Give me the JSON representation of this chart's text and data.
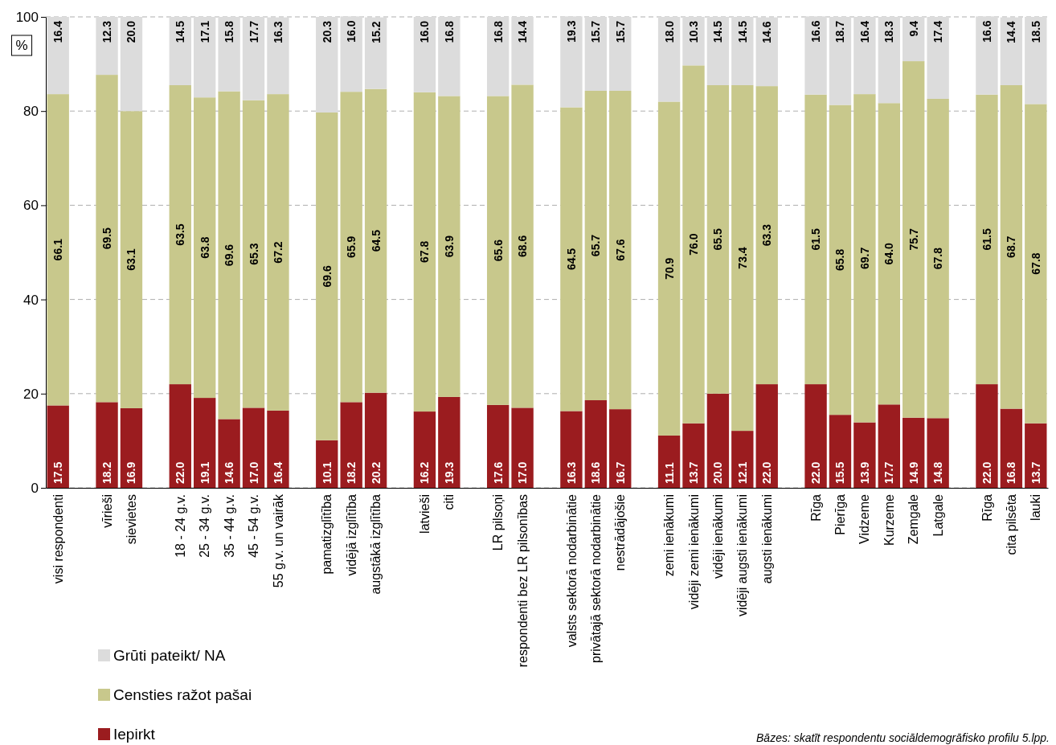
{
  "chart_data": {
    "type": "bar",
    "stacked": true,
    "ylabel": "%",
    "categories": [
      "visi respondenti",
      null,
      "vīrieši",
      "sievietes",
      null,
      "18 - 24 g.v.",
      "25 - 34 g.v.",
      "35 - 44 g.v.",
      "45 - 54 g.v.",
      "55 g.v. un vairāk",
      null,
      "pamatizglītība",
      "vidējā izglītība",
      "augstākā izglītība",
      null,
      "latvieši",
      "citi",
      null,
      "LR pilsoņi",
      "respondenti bez LR pilsonības",
      null,
      "valsts sektorā nodarbinātie",
      "privātajā sektorā nodarbinātie",
      "nestrādājošie",
      null,
      "zemi ienākumi",
      "vidēji zemi ienākumi",
      "vidēji ienākumi",
      "vidēji augsti ienākumi",
      "augsti ienākumi",
      null,
      "Rīga",
      "Pierīga",
      "Vidzeme",
      "Kurzeme",
      "Zemgale",
      "Latgale",
      null,
      "Rīga",
      "cita pilsēta",
      "lauki"
    ],
    "series": [
      {
        "name": "Iepirkt",
        "color": "#9b1c1f",
        "values": [
          17.5,
          null,
          18.2,
          16.9,
          null,
          22.0,
          19.1,
          14.6,
          17.0,
          16.4,
          null,
          10.1,
          18.2,
          20.2,
          null,
          16.2,
          19.3,
          null,
          17.6,
          17.0,
          null,
          16.3,
          18.6,
          16.7,
          null,
          11.1,
          13.7,
          20.0,
          12.1,
          22.0,
          null,
          22.0,
          15.5,
          13.9,
          17.7,
          14.9,
          14.8,
          null,
          22.0,
          16.8,
          13.7
        ],
        "value_labels": [
          "17.5",
          null,
          "18.2",
          "16.9",
          null,
          "22.0",
          "19.1",
          "14.6",
          "17.0",
          "16.4",
          null,
          "10.1",
          "18.2",
          "20.2",
          null,
          "16.2",
          "19.3",
          null,
          "17.6",
          "17.0",
          null,
          "16.3",
          "18.6",
          "16.7",
          null,
          "11.1",
          "13.7",
          "20.0",
          "12.1",
          "22.0",
          null,
          "22.0",
          "15.5",
          "13.9",
          "17.7",
          "14.9",
          "14.8",
          null,
          "22.0",
          "16.8",
          "13.7"
        ]
      },
      {
        "name": "Censties ražot pašai",
        "color": "#c8c88c",
        "values": [
          66.1,
          null,
          69.5,
          63.1,
          null,
          63.5,
          63.8,
          69.6,
          65.3,
          67.2,
          null,
          69.6,
          65.9,
          64.5,
          null,
          67.8,
          63.9,
          null,
          65.6,
          68.6,
          null,
          64.5,
          65.7,
          67.6,
          null,
          70.9,
          76.0,
          65.5,
          73.4,
          63.3,
          null,
          61.5,
          65.8,
          69.7,
          64.0,
          75.7,
          67.8,
          null,
          61.5,
          68.7,
          67.8
        ],
        "value_labels": [
          "66.1",
          null,
          "69.5",
          "63.1",
          null,
          "63.5",
          "63.8",
          "69.6",
          "65.3",
          "67.2",
          null,
          "69.6",
          "65.9",
          "64.5",
          null,
          "67.8",
          "63.9",
          null,
          "65.6",
          "68.6",
          null,
          "64.5",
          "65.7",
          "67.6",
          null,
          "70.9",
          "76.0",
          "65.5",
          "73.4",
          "63.3",
          null,
          "61.5",
          "65.8",
          "69.7",
          "64.0",
          "75.7",
          "67.8",
          null,
          "61.5",
          "68.7",
          "67.8"
        ]
      },
      {
        "name": "Grūti pateikt/ NA",
        "color": "#dcdcdc",
        "values": [
          16.4,
          null,
          12.3,
          20.0,
          null,
          14.5,
          17.1,
          15.8,
          17.7,
          16.3,
          null,
          20.3,
          16.0,
          15.2,
          null,
          16.0,
          16.8,
          null,
          16.8,
          14.4,
          null,
          19.3,
          15.7,
          15.7,
          null,
          18.0,
          10.3,
          14.5,
          14.5,
          14.6,
          null,
          16.6,
          18.7,
          16.4,
          18.3,
          9.4,
          17.4,
          null,
          16.6,
          14.4,
          18.5
        ],
        "value_labels": [
          "16.4",
          null,
          "12.3",
          "20.0",
          null,
          "14.5",
          "17.1",
          "15.8",
          "17.7",
          "16.3",
          null,
          "20.3",
          "16.0",
          "15.2",
          null,
          "16.0",
          "16.8",
          null,
          "16.8",
          "14.4",
          null,
          "19.3",
          "15.7",
          "15.7",
          null,
          "18.0",
          "10.3",
          "14.5",
          "14.5",
          "14.6",
          null,
          "16.6",
          "18.7",
          "16.4",
          "18.3",
          "9.4",
          "17.4",
          null,
          "16.6",
          "14.4",
          "18.5"
        ]
      }
    ],
    "ylim": [
      0,
      100
    ],
    "yticks": [
      0,
      20,
      40,
      60,
      80,
      100
    ],
    "grid": "y",
    "legend": "bottom left",
    "annotations": [
      "Bāzes: skatīt respondentu sociāldemogrāfisko profilu 5.lpp."
    ]
  }
}
